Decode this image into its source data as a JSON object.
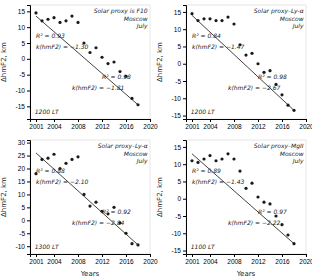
{
  "chart_data": [
    {
      "type": "scatter",
      "title": "Solar proxy is F10\nMoscow\nJuly",
      "annotations": [
        "1200 LT",
        "R² = 0.93",
        "k(hmF2) = −1.30",
        "R² = 0.98",
        "k(hmF2) = −1.81"
      ],
      "y_label": "ΔhmF2, km",
      "xlim": [
        2000,
        2020
      ],
      "xticks": [
        2001,
        2004,
        2008,
        2012,
        2016,
        2020
      ],
      "ylim": [
        -19,
        17
      ],
      "yticks": [
        -15,
        -10,
        -5,
        0,
        5,
        10,
        15
      ],
      "series": [
        {
          "type": "scatter",
          "color": "#1a1a1a",
          "x": [
            2001,
            2002,
            2003,
            2004,
            2005,
            2006,
            2007,
            2008,
            2009,
            2010,
            2011,
            2012,
            2013,
            2014,
            2015,
            2016,
            2017,
            2018
          ],
          "values": [
            14.5,
            12.0,
            12.5,
            13.0,
            11.5,
            12.0,
            13.5,
            11.5,
            5.0,
            2.0,
            3.5,
            0.5,
            -1.5,
            -1.0,
            -4.0,
            -5.5,
            -12.5,
            -14.5
          ]
        },
        {
          "type": "line",
          "color": "#444444",
          "x": [
            2001,
            2018
          ],
          "values": [
            13.5,
            -14.5
          ]
        }
      ]
    },
    {
      "type": "scatter",
      "title": "Solar proxy–Ly-α\nMoscow\nJuly",
      "annotations": [
        "1200 LT",
        "R² = 0.84",
        "k(hmF2) = −1.47",
        "R² = 0.98",
        "k(hmF2) = −2.67"
      ],
      "y_label": "ΔhmF2, km",
      "xlim": [
        2000,
        2020
      ],
      "xticks": [
        2001,
        2004,
        2008,
        2012,
        2016,
        2020
      ],
      "ylim": [
        -16,
        17
      ],
      "yticks": [
        -15,
        -10,
        -5,
        0,
        5,
        10,
        15
      ],
      "series": [
        {
          "type": "scatter",
          "color": "#1a1a1a",
          "x": [
            2001,
            2002,
            2003,
            2004,
            2005,
            2006,
            2007,
            2008,
            2009,
            2010,
            2011,
            2012,
            2013,
            2014,
            2015,
            2016,
            2017,
            2018
          ],
          "values": [
            14.5,
            12.5,
            13.0,
            13.0,
            12.5,
            12.5,
            13.5,
            11.5,
            5.5,
            2.5,
            3.0,
            0.0,
            -2.5,
            -2.0,
            -6.0,
            -9.0,
            -12.0,
            -13.5
          ]
        },
        {
          "type": "line",
          "color": "#444444",
          "x": [
            2001,
            2018
          ],
          "values": [
            14.0,
            -13.5
          ]
        }
      ]
    },
    {
      "type": "scatter",
      "title": "Solar proxy–Ly-α\nMoscow\nJuly",
      "annotations": [
        "1300 LT",
        "R² = 0.88",
        "k(hmF2) = −2.10",
        "R² = 0.92",
        "k(hmF2) = −2.84"
      ],
      "x_label": "Years",
      "y_label": "ΔhmF2, km",
      "xlim": [
        2000,
        2020
      ],
      "xticks": [
        2001,
        2004,
        2008,
        2012,
        2016,
        2020
      ],
      "ylim": [
        -13,
        31
      ],
      "yticks": [
        -10,
        -5,
        0,
        5,
        10,
        15,
        20,
        25,
        30
      ],
      "series": [
        {
          "type": "scatter",
          "color": "#1a1a1a",
          "x": [
            2001,
            2002,
            2003,
            2004,
            2005,
            2006,
            2007,
            2008,
            2009,
            2010,
            2011,
            2012,
            2013,
            2014,
            2015,
            2016,
            2017,
            2018
          ],
          "values": [
            18.0,
            23.5,
            24.0,
            25.5,
            20.0,
            22.0,
            23.5,
            24.5,
            10.0,
            5.5,
            7.0,
            3.5,
            2.5,
            5.0,
            -1.0,
            -5.0,
            -9.0,
            -9.5
          ]
        },
        {
          "type": "line",
          "color": "#444444",
          "x": [
            2001,
            2018
          ],
          "values": [
            26.0,
            -9.5
          ]
        }
      ]
    },
    {
      "type": "scatter",
      "title": "Solar proxy–MgII\nMoscow\nJuly",
      "annotations": [
        "1100 LT",
        "R² = 0.89",
        "k(hmF2) = −1.43",
        "R² = 0.97",
        "k(hmF2) = −2.22"
      ],
      "x_label": "Years",
      "y_label": "ΔhmF2, km",
      "xlim": [
        2000,
        2020
      ],
      "xticks": [
        2001,
        2004,
        2008,
        2012,
        2016,
        2020
      ],
      "ylim": [
        -16,
        17
      ],
      "yticks": [
        -15,
        -10,
        -5,
        0,
        5,
        10,
        15
      ],
      "series": [
        {
          "type": "scatter",
          "color": "#1a1a1a",
          "x": [
            2001,
            2002,
            2003,
            2004,
            2005,
            2006,
            2007,
            2008,
            2009,
            2010,
            2011,
            2012,
            2013,
            2014,
            2015,
            2016,
            2017,
            2018
          ],
          "values": [
            11.0,
            10.5,
            11.5,
            12.5,
            11.0,
            11.5,
            13.0,
            11.5,
            8.0,
            3.0,
            4.5,
            0.5,
            -1.0,
            -1.5,
            -5.0,
            -7.5,
            -10.5,
            -13.0
          ]
        },
        {
          "type": "line",
          "color": "#444444",
          "x": [
            2001,
            2018
          ],
          "values": [
            13.0,
            -13.0
          ]
        }
      ]
    }
  ]
}
